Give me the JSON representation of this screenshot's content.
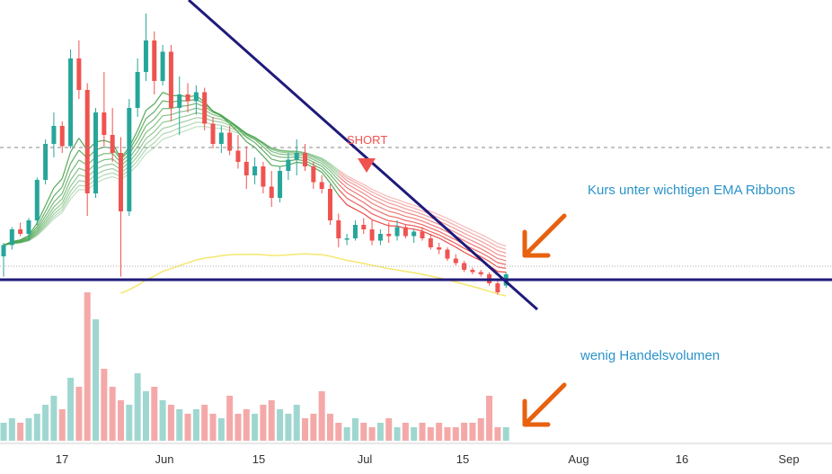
{
  "chart_data": {
    "type": "candlestick",
    "x_ticks": [
      "17",
      "Jun",
      "15",
      "Jul",
      "15",
      "Aug",
      "16",
      "Sep"
    ],
    "series": [
      {
        "kind": "candles",
        "values": [
          {
            "o": 1,
            "h": 1.6,
            "l": 0.1,
            "c": 1.5
          },
          {
            "o": 1.5,
            "h": 2.3,
            "l": 1.3,
            "c": 2.2
          },
          {
            "o": 2.2,
            "h": 2.5,
            "l": 1.9,
            "c": 2.0
          },
          {
            "o": 2.0,
            "h": 2.7,
            "l": 1.7,
            "c": 2.6
          },
          {
            "o": 2.6,
            "h": 4.5,
            "l": 2.4,
            "c": 4.4
          },
          {
            "o": 4.4,
            "h": 6.2,
            "l": 4.2,
            "c": 6.0
          },
          {
            "o": 6.0,
            "h": 7.4,
            "l": 5.4,
            "c": 6.8
          },
          {
            "o": 6.8,
            "h": 7.0,
            "l": 5.6,
            "c": 5.9
          },
          {
            "o": 5.9,
            "h": 10.2,
            "l": 5.8,
            "c": 9.8
          },
          {
            "o": 9.8,
            "h": 10.6,
            "l": 8.0,
            "c": 8.4
          },
          {
            "o": 8.4,
            "h": 8.7,
            "l": 2.8,
            "c": 3.8
          },
          {
            "o": 3.8,
            "h": 7.6,
            "l": 3.6,
            "c": 7.4
          },
          {
            "o": 7.4,
            "h": 9.2,
            "l": 5.9,
            "c": 6.4
          },
          {
            "o": 6.4,
            "h": 7.6,
            "l": 5.2,
            "c": 5.6
          },
          {
            "o": 5.6,
            "h": 6.3,
            "l": 0.1,
            "c": 3.0
          },
          {
            "o": 3.0,
            "h": 8.0,
            "l": 2.8,
            "c": 7.6
          },
          {
            "o": 7.6,
            "h": 9.8,
            "l": 7.2,
            "c": 9.2
          },
          {
            "o": 9.2,
            "h": 11.8,
            "l": 8.8,
            "c": 10.6
          },
          {
            "o": 10.6,
            "h": 11.0,
            "l": 8.2,
            "c": 8.8
          },
          {
            "o": 8.8,
            "h": 10.4,
            "l": 8.6,
            "c": 10.1
          },
          {
            "o": 10.1,
            "h": 10.4,
            "l": 7.0,
            "c": 7.6
          },
          {
            "o": 7.6,
            "h": 9.0,
            "l": 6.4,
            "c": 8.2
          },
          {
            "o": 8.2,
            "h": 8.7,
            "l": 7.4,
            "c": 7.9
          },
          {
            "o": 7.9,
            "h": 8.6,
            "l": 7.3,
            "c": 8.3
          },
          {
            "o": 8.3,
            "h": 8.5,
            "l": 6.6,
            "c": 6.9
          },
          {
            "o": 6.9,
            "h": 7.2,
            "l": 5.8,
            "c": 6.0
          },
          {
            "o": 6.0,
            "h": 6.8,
            "l": 5.6,
            "c": 6.5
          },
          {
            "o": 6.5,
            "h": 6.8,
            "l": 5.5,
            "c": 5.7
          },
          {
            "o": 5.7,
            "h": 6.4,
            "l": 4.9,
            "c": 5.2
          },
          {
            "o": 5.2,
            "h": 5.9,
            "l": 4.0,
            "c": 4.6
          },
          {
            "o": 4.6,
            "h": 5.4,
            "l": 4.2,
            "c": 5.0
          },
          {
            "o": 5.0,
            "h": 5.2,
            "l": 3.8,
            "c": 4.1
          },
          {
            "o": 4.1,
            "h": 4.8,
            "l": 3.2,
            "c": 3.6
          },
          {
            "o": 3.6,
            "h": 5.0,
            "l": 3.4,
            "c": 4.8
          },
          {
            "o": 4.8,
            "h": 5.6,
            "l": 4.4,
            "c": 5.3
          },
          {
            "o": 5.3,
            "h": 6.2,
            "l": 4.6,
            "c": 5.6
          },
          {
            "o": 5.6,
            "h": 6.0,
            "l": 4.8,
            "c": 5.0
          },
          {
            "o": 5.0,
            "h": 5.2,
            "l": 4.0,
            "c": 4.3
          },
          {
            "o": 4.3,
            "h": 4.6,
            "l": 3.8,
            "c": 4.0
          },
          {
            "o": 4.0,
            "h": 4.2,
            "l": 2.4,
            "c": 2.6
          },
          {
            "o": 2.6,
            "h": 2.9,
            "l": 1.4,
            "c": 1.8
          },
          {
            "o": 1.8,
            "h": 2.0,
            "l": 1.5,
            "c": 1.8
          },
          {
            "o": 1.8,
            "h": 2.6,
            "l": 1.7,
            "c": 2.4
          },
          {
            "o": 2.4,
            "h": 2.7,
            "l": 2.0,
            "c": 2.2
          },
          {
            "o": 2.2,
            "h": 2.6,
            "l": 1.5,
            "c": 1.7
          },
          {
            "o": 1.7,
            "h": 2.2,
            "l": 1.5,
            "c": 2.0
          },
          {
            "o": 2.0,
            "h": 2.5,
            "l": 1.6,
            "c": 1.9
          },
          {
            "o": 1.9,
            "h": 2.6,
            "l": 1.7,
            "c": 2.3
          },
          {
            "o": 2.3,
            "h": 2.4,
            "l": 1.8,
            "c": 1.9
          },
          {
            "o": 1.9,
            "h": 2.2,
            "l": 1.6,
            "c": 2.1
          },
          {
            "o": 2.1,
            "h": 2.3,
            "l": 1.7,
            "c": 1.8
          },
          {
            "o": 1.8,
            "h": 2.0,
            "l": 1.3,
            "c": 1.4
          },
          {
            "o": 1.4,
            "h": 1.6,
            "l": 1.1,
            "c": 1.3
          },
          {
            "o": 1.3,
            "h": 1.4,
            "l": 0.8,
            "c": 0.9
          },
          {
            "o": 0.9,
            "h": 1.1,
            "l": 0.6,
            "c": 0.7
          },
          {
            "o": 0.7,
            "h": 0.8,
            "l": 0.3,
            "c": 0.4
          },
          {
            "o": 0.4,
            "h": 0.5,
            "l": 0.2,
            "c": 0.3
          },
          {
            "o": 0.3,
            "h": 0.4,
            "l": 0.1,
            "c": 0.2
          },
          {
            "o": 0.2,
            "h": 0.3,
            "l": -0.3,
            "c": -0.2
          },
          {
            "o": -0.2,
            "h": -0.1,
            "l": -0.7,
            "c": -0.6
          },
          {
            "o": -0.3,
            "h": 0.3,
            "l": -0.4,
            "c": 0.2
          }
        ]
      },
      {
        "kind": "volume",
        "values": [
          4,
          5,
          4,
          5,
          6,
          8,
          10,
          7,
          14,
          12,
          33,
          27,
          16,
          12,
          9,
          8,
          15,
          11,
          12,
          9,
          8,
          7,
          6,
          7,
          8,
          6,
          5,
          10,
          6,
          7,
          6,
          8,
          9,
          7,
          6,
          8,
          5,
          6,
          11,
          6,
          4,
          3,
          5,
          4,
          3,
          4,
          5,
          3,
          4,
          3,
          4,
          3,
          4,
          3,
          3,
          4,
          4,
          5,
          10,
          3,
          3
        ]
      }
    ],
    "annotations": {
      "signal_label": "SHORT",
      "ribbon_note": "Kurs unter wichtigen EMA Ribbons",
      "volume_note": "wenig Handelsvolumen"
    },
    "colors": {
      "up": "#26a69a",
      "down": "#ef5350",
      "volume_up": "#9fd7d0",
      "volume_down": "#f4a9a8",
      "trendline": "#1f1a7a",
      "arrow": "#e8610f",
      "note": "#2a93c9",
      "signal": "#ef5350",
      "ema_green": "#43a047",
      "ema_red": "#e53935",
      "ma_yellow": "#f5e76e"
    },
    "grid": false
  }
}
